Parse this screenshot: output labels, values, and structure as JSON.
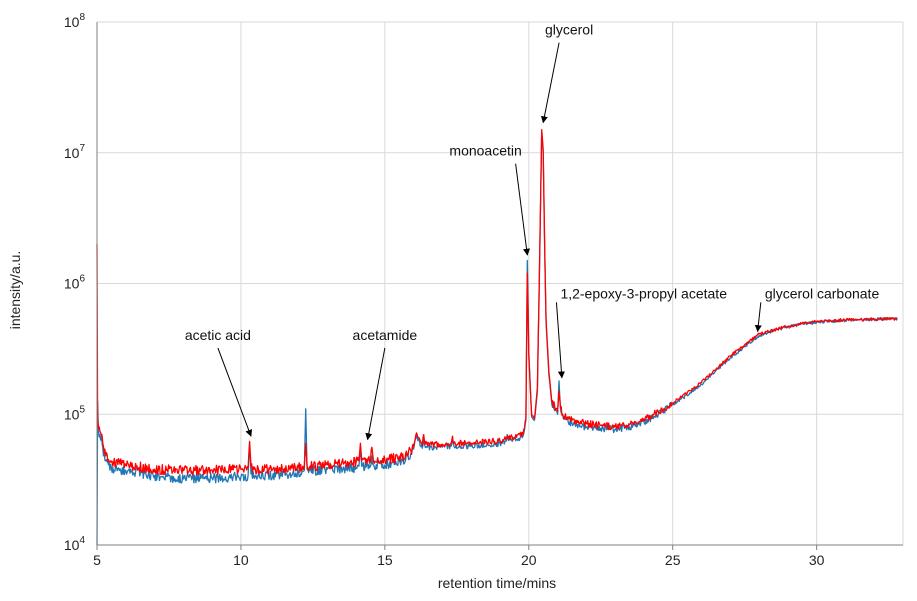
{
  "chart_data": {
    "type": "line",
    "title": "",
    "xlabel": "retention time/mins",
    "ylabel": "intensity/a.u.",
    "xlim": [
      5,
      33
    ],
    "x_ticks": [
      5,
      10,
      15,
      20,
      25,
      30
    ],
    "y_scale": "log",
    "ylim": [
      10000,
      100000000
    ],
    "y_ticks": [
      {
        "value": 10000,
        "base": "10",
        "exp": "4"
      },
      {
        "value": 100000,
        "base": "10",
        "exp": "5"
      },
      {
        "value": 1000000,
        "base": "10",
        "exp": "6"
      },
      {
        "value": 10000000,
        "base": "10",
        "exp": "7"
      },
      {
        "value": 100000000,
        "base": "10",
        "exp": "8"
      }
    ],
    "grid": true,
    "series": [
      {
        "color": "#1f77b4",
        "x": [
          5.0,
          5.02,
          5.05,
          5.1,
          5.15,
          5.2,
          5.3,
          5.4,
          5.5,
          6.0,
          7.0,
          8.0,
          9.0,
          10.0,
          10.25,
          10.3,
          10.35,
          10.5,
          11.0,
          12.0,
          12.2,
          12.25,
          12.3,
          12.4,
          13.0,
          14.0,
          14.1,
          14.15,
          14.2,
          14.5,
          14.55,
          14.6,
          15.0,
          15.6,
          15.9,
          16.0,
          16.1,
          16.3,
          16.35,
          16.4,
          17.0,
          17.3,
          17.35,
          17.4,
          18.0,
          19.0,
          19.2,
          19.25,
          19.3,
          19.7,
          19.8,
          19.9,
          19.95,
          20.0,
          20.1,
          20.2,
          20.3,
          20.4,
          20.45,
          20.5,
          20.55,
          20.6,
          20.7,
          20.8,
          21.0,
          21.05,
          21.1,
          21.2,
          21.5,
          22.0,
          22.5,
          23.0,
          23.5,
          24.0,
          24.5,
          25.0,
          25.5,
          26.0,
          26.5,
          27.0,
          27.5,
          28.0,
          28.5,
          29.0,
          29.5,
          30.0,
          30.5,
          31.0,
          31.5,
          32.0,
          32.5,
          32.8
        ],
        "y": [
          10000,
          125000,
          75000,
          70000,
          68000,
          55000,
          44000,
          41000,
          39000,
          37000,
          34000,
          32000,
          32500,
          33000,
          34000,
          60000,
          35000,
          34000,
          34000,
          36000,
          37000,
          110000,
          38000,
          37000,
          38000,
          39000,
          40000,
          55000,
          40000,
          40000,
          48000,
          41000,
          41000,
          44000,
          50000,
          54000,
          70000,
          55000,
          68000,
          56000,
          56000,
          57000,
          66000,
          57000,
          57000,
          60000,
          62000,
          70000,
          63000,
          66000,
          68000,
          90000,
          1500000,
          300000,
          95000,
          90000,
          150000,
          3000000,
          14000000,
          10000000,
          2000000,
          500000,
          200000,
          120000,
          100000,
          180000,
          110000,
          93000,
          85000,
          80000,
          78000,
          77000,
          80000,
          88000,
          100000,
          118000,
          140000,
          170000,
          215000,
          270000,
          330000,
          400000,
          435000,
          465000,
          490000,
          505000,
          515000,
          522000,
          528000,
          532000,
          535000,
          536000
        ]
      },
      {
        "color": "#ff0000",
        "x": [
          5.0,
          5.02,
          5.05,
          5.1,
          5.15,
          5.2,
          5.3,
          5.4,
          5.5,
          6.0,
          7.0,
          8.0,
          9.0,
          10.0,
          10.25,
          10.3,
          10.35,
          10.5,
          11.0,
          12.0,
          12.2,
          12.25,
          12.3,
          12.4,
          13.0,
          14.0,
          14.1,
          14.15,
          14.2,
          14.5,
          14.55,
          14.6,
          15.0,
          15.6,
          15.9,
          16.0,
          16.1,
          16.3,
          16.35,
          16.4,
          17.0,
          17.3,
          17.35,
          17.4,
          18.0,
          19.0,
          19.2,
          19.25,
          19.3,
          19.7,
          19.8,
          19.9,
          19.95,
          20.0,
          20.1,
          20.2,
          20.3,
          20.4,
          20.45,
          20.5,
          20.55,
          20.6,
          20.7,
          20.8,
          21.0,
          21.05,
          21.1,
          21.2,
          21.5,
          22.0,
          22.5,
          23.0,
          23.5,
          24.0,
          24.5,
          25.0,
          25.5,
          26.0,
          26.5,
          27.0,
          27.5,
          28.0,
          28.5,
          29.0,
          29.5,
          30.0,
          30.5,
          31.0,
          31.5,
          32.0,
          32.5,
          32.8
        ],
        "y": [
          2000000,
          95000,
          78000,
          74000,
          70000,
          60000,
          48000,
          45000,
          43000,
          41000,
          38000,
          37000,
          37500,
          38000,
          39000,
          62000,
          40000,
          38000,
          38000,
          39000,
          40000,
          60000,
          40000,
          40000,
          41000,
          43000,
          44000,
          60000,
          44000,
          44000,
          56000,
          45000,
          45000,
          47000,
          53000,
          56000,
          72000,
          58000,
          70000,
          59000,
          59000,
          60000,
          68000,
          60000,
          60000,
          63000,
          64000,
          68000,
          65000,
          69000,
          70000,
          92000,
          1200000,
          280000,
          98000,
          93000,
          160000,
          3200000,
          15000000,
          10500000,
          2100000,
          520000,
          210000,
          125000,
          105000,
          150000,
          112000,
          97000,
          90000,
          85000,
          82000,
          80000,
          83000,
          92000,
          104000,
          122000,
          145000,
          175000,
          220000,
          280000,
          340000,
          410000,
          440000,
          470000,
          495000,
          510000,
          520000,
          526000,
          530000,
          533000,
          536000,
          537000
        ]
      }
    ],
    "annotations": [
      {
        "text": "acetic acid",
        "tx": 9.2,
        "ty": 370000,
        "ax": 10.35,
        "ay": 68000,
        "anchor": "middle"
      },
      {
        "text": "acetamide",
        "tx": 15.0,
        "ty": 370000,
        "ax": 14.4,
        "ay": 64000,
        "anchor": "middle"
      },
      {
        "text": "monoacetin",
        "tx": 18.5,
        "ty": 9500000,
        "ax": 19.95,
        "ay": 1650000,
        "anchor": "middle"
      },
      {
        "text": "glycerol",
        "tx": 21.4,
        "ty": 80000000,
        "ax": 20.5,
        "ay": 17000000,
        "anchor": "middle"
      },
      {
        "text": "1,2-epoxy-3-propyl acetate",
        "tx": 21.1,
        "ty": 770000,
        "ax": 21.15,
        "ay": 190000,
        "anchor": "start"
      },
      {
        "text": "glycerol carbonate",
        "tx": 28.2,
        "ty": 770000,
        "ax": 27.95,
        "ay": 430000,
        "anchor": "start"
      }
    ]
  }
}
